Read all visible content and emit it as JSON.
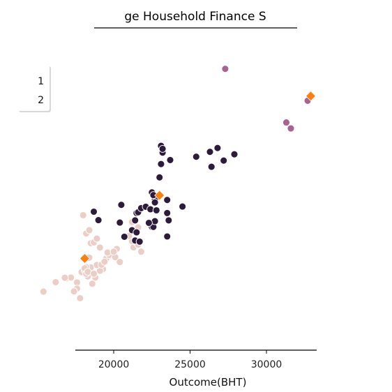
{
  "chart_data": {
    "type": "scatter",
    "title": "ge Household Finance S",
    "xlabel": "Outcome(BHT)",
    "ylabel": "",
    "xlim": [
      17500,
      33300
    ],
    "ylim": [
      0,
      100
    ],
    "x_ticks": [
      20000,
      25000,
      30000
    ],
    "x_tick_labels": [
      "20000",
      "25000",
      "30000"
    ],
    "grid": false,
    "legend": {
      "placement": "upper-left",
      "entries": [
        "1",
        "2"
      ]
    },
    "colors": {
      "cluster_light": "#ebcfc6",
      "cluster_dark": "#2d1b3b",
      "cluster_mauve": "#a86490",
      "centroid": "#ff7f0e"
    },
    "series": [
      {
        "color_key": "cluster_light",
        "points": [
          [
            15400,
            13.3
          ],
          [
            16200,
            16.8
          ],
          [
            16900,
            18.2
          ],
          [
            17200,
            18.5
          ],
          [
            17600,
            16.7
          ],
          [
            18300,
            18.9
          ],
          [
            18600,
            16.2
          ],
          [
            18800,
            18.5
          ],
          [
            17900,
            20.5
          ],
          [
            18100,
            21.2
          ],
          [
            18400,
            21.8
          ],
          [
            18500,
            22.2
          ],
          [
            18200,
            22.3
          ],
          [
            18100,
            21.9
          ],
          [
            19300,
            21.6
          ],
          [
            19100,
            21.0
          ],
          [
            19500,
            25.4
          ],
          [
            19700,
            26.8
          ],
          [
            20100,
            26.0
          ],
          [
            18900,
            23.1
          ],
          [
            20400,
            24.2
          ],
          [
            19200,
            23.2
          ],
          [
            19400,
            24.3
          ],
          [
            20200,
            29.0
          ],
          [
            19600,
            27.7
          ],
          [
            20000,
            28.0
          ],
          [
            19100,
            29.5
          ],
          [
            18500,
            31.1
          ],
          [
            18700,
            31.4
          ],
          [
            18900,
            32.8
          ],
          [
            18200,
            34.7
          ],
          [
            18000,
            41.4
          ],
          [
            18400,
            35.9
          ],
          [
            18400,
            25.8
          ],
          [
            18200,
            19.9
          ],
          [
            17800,
            10.9
          ],
          [
            17600,
            14.4
          ],
          [
            17400,
            13.4
          ],
          [
            16800,
            18.4
          ],
          [
            18300,
            20.6
          ],
          [
            18700,
            19.9
          ],
          [
            21300,
            29.6
          ],
          [
            21500,
            31.4
          ],
          [
            21600,
            30.6
          ],
          [
            21800,
            28.0
          ],
          [
            21200,
            31.9
          ],
          [
            21000,
            33.8
          ],
          [
            21600,
            36.9
          ],
          [
            21200,
            38.9
          ]
        ]
      },
      {
        "color_key": "cluster_dark",
        "points": [
          [
            18700,
            42.7
          ],
          [
            19000,
            39.6
          ],
          [
            20400,
            38.7
          ],
          [
            20700,
            33.5
          ],
          [
            21200,
            35.9
          ],
          [
            21500,
            35.1
          ],
          [
            21400,
            39.5
          ],
          [
            21500,
            42.2
          ],
          [
            21600,
            42.5
          ],
          [
            21800,
            44.0
          ],
          [
            21400,
            32.1
          ],
          [
            21700,
            31.7
          ],
          [
            22100,
            44.5
          ],
          [
            22400,
            43.6
          ],
          [
            22500,
            37.1
          ],
          [
            22600,
            37.1
          ],
          [
            22700,
            39.2
          ],
          [
            22800,
            43.2
          ],
          [
            22300,
            38.6
          ],
          [
            22500,
            49.8
          ],
          [
            22700,
            47.1
          ],
          [
            23000,
            55.3
          ],
          [
            23100,
            60.2
          ],
          [
            23100,
            66.9
          ],
          [
            23200,
            64.4
          ],
          [
            23200,
            65.8
          ],
          [
            23500,
            42.2
          ],
          [
            23500,
            47.0
          ],
          [
            23700,
            61.7
          ],
          [
            23600,
            39.5
          ],
          [
            24500,
            44.6
          ],
          [
            25400,
            62.9
          ],
          [
            26300,
            64.7
          ],
          [
            26400,
            59.2
          ],
          [
            26800,
            66.1
          ],
          [
            27200,
            61.5
          ],
          [
            27900,
            63.8
          ],
          [
            23500,
            33.6
          ],
          [
            22600,
            48.8
          ],
          [
            22700,
            46.1
          ],
          [
            20500,
            45.2
          ]
        ]
      },
      {
        "color_key": "cluster_mauve",
        "points": [
          [
            27300,
            95.2
          ],
          [
            31300,
            75.5
          ],
          [
            31600,
            73.3
          ],
          [
            32700,
            83.5
          ]
        ]
      }
    ],
    "centroids": [
      [
        18100,
        25.5
      ],
      [
        23000,
        48.7
      ],
      [
        32900,
        85.2
      ]
    ]
  }
}
